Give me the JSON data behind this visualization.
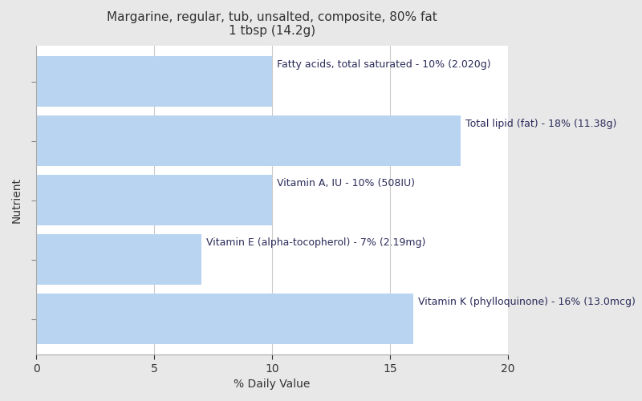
{
  "title_line1": "Margarine, regular, tub, unsalted, composite, 80% fat",
  "title_line2": "1 tbsp (14.2g)",
  "xlabel": "% Daily Value",
  "ylabel": "Nutrient",
  "figure_bg": "#e8e8e8",
  "axes_bg": "#ffffff",
  "bar_color": "#b8d4f0",
  "label_color": "#2a2a5a",
  "grid_color": "#cccccc",
  "bars": [
    {
      "label": "Fatty acids, total saturated - 10% (2.020g)",
      "value": 10
    },
    {
      "label": "Total lipid (fat) - 18% (11.38g)",
      "value": 18
    },
    {
      "label": "Vitamin A, IU - 10% (508IU)",
      "value": 10
    },
    {
      "label": "Vitamin E (alpha-tocopherol) - 7% (2.19mg)",
      "value": 7
    },
    {
      "label": "Vitamin K (phylloquinone) - 16% (13.0mcg)",
      "value": 16
    }
  ],
  "xlim": [
    0,
    20
  ],
  "xticks": [
    0,
    5,
    10,
    15,
    20
  ],
  "title_fontsize": 11,
  "label_fontsize": 9,
  "axis_label_fontsize": 10,
  "tick_fontsize": 10,
  "bar_height": 0.85
}
